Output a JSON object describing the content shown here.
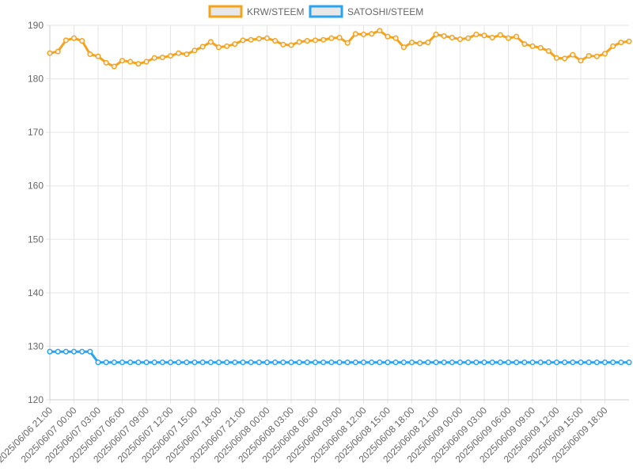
{
  "chart_data": {
    "type": "line",
    "title": "",
    "xlabel": "",
    "ylabel": "",
    "ylim": [
      120,
      190
    ],
    "yticks": [
      120,
      130,
      140,
      150,
      160,
      170,
      180,
      190
    ],
    "grid": true,
    "legend_position": "top-center",
    "x": [
      "2025/06/06 21:00",
      "2025/06/06 22:00",
      "2025/06/06 23:00",
      "2025/06/07 00:00",
      "2025/06/07 01:00",
      "2025/06/07 02:00",
      "2025/06/07 03:00",
      "2025/06/07 04:00",
      "2025/06/07 05:00",
      "2025/06/07 06:00",
      "2025/06/07 07:00",
      "2025/06/07 08:00",
      "2025/06/07 09:00",
      "2025/06/07 10:00",
      "2025/06/07 11:00",
      "2025/06/07 12:00",
      "2025/06/07 13:00",
      "2025/06/07 14:00",
      "2025/06/07 15:00",
      "2025/06/07 16:00",
      "2025/06/07 17:00",
      "2025/06/07 18:00",
      "2025/06/07 19:00",
      "2025/06/07 20:00",
      "2025/06/07 21:00",
      "2025/06/07 22:00",
      "2025/06/07 23:00",
      "2025/06/08 00:00",
      "2025/06/08 01:00",
      "2025/06/08 02:00",
      "2025/06/08 03:00",
      "2025/06/08 04:00",
      "2025/06/08 05:00",
      "2025/06/08 06:00",
      "2025/06/08 07:00",
      "2025/06/08 08:00",
      "2025/06/08 09:00",
      "2025/06/08 10:00",
      "2025/06/08 11:00",
      "2025/06/08 12:00",
      "2025/06/08 13:00",
      "2025/06/08 14:00",
      "2025/06/08 15:00",
      "2025/06/08 16:00",
      "2025/06/08 17:00",
      "2025/06/08 18:00",
      "2025/06/08 19:00",
      "2025/06/08 20:00",
      "2025/06/08 21:00",
      "2025/06/08 22:00",
      "2025/06/08 23:00",
      "2025/06/09 00:00",
      "2025/06/09 01:00",
      "2025/06/09 02:00",
      "2025/06/09 03:00",
      "2025/06/09 04:00",
      "2025/06/09 05:00",
      "2025/06/09 06:00",
      "2025/06/09 07:00",
      "2025/06/09 08:00",
      "2025/06/09 09:00",
      "2025/06/09 10:00",
      "2025/06/09 11:00",
      "2025/06/09 12:00",
      "2025/06/09 13:00",
      "2025/06/09 14:00",
      "2025/06/09 15:00",
      "2025/06/09 16:00",
      "2025/06/09 17:00",
      "2025/06/09 18:00",
      "2025/06/09 19:00",
      "2025/06/09 20:00",
      "2025/06/09 21:00"
    ],
    "x_tick_labels": [
      "2025/06/06 21:00",
      "2025/06/07 00:00",
      "2025/06/07 03:00",
      "2025/06/07 06:00",
      "2025/06/07 09:00",
      "2025/06/07 12:00",
      "2025/06/07 15:00",
      "2025/06/07 18:00",
      "2025/06/07 21:00",
      "2025/06/08 00:00",
      "2025/06/08 03:00",
      "2025/06/08 06:00",
      "2025/06/08 09:00",
      "2025/06/08 12:00",
      "2025/06/08 15:00",
      "2025/06/08 18:00",
      "2025/06/08 21:00",
      "2025/06/09 00:00",
      "2025/06/09 03:00",
      "2025/06/09 06:00",
      "2025/06/09 09:00",
      "2025/06/09 12:00",
      "2025/06/09 15:00",
      "2025/06/09 18:00"
    ],
    "series": [
      {
        "name": "KRW/STEEM",
        "color": "#f5a31a",
        "values": [
          184.8,
          185.1,
          187.2,
          187.6,
          187.1,
          184.6,
          184.2,
          183.0,
          182.3,
          183.4,
          183.2,
          182.8,
          183.2,
          183.9,
          184.0,
          184.3,
          184.8,
          184.6,
          185.3,
          186.0,
          186.9,
          185.9,
          186.1,
          186.5,
          187.2,
          187.3,
          187.5,
          187.6,
          187.1,
          186.4,
          186.3,
          186.9,
          187.1,
          187.2,
          187.3,
          187.6,
          187.7,
          186.7,
          188.4,
          188.3,
          188.4,
          189.0,
          187.9,
          187.6,
          185.9,
          186.8,
          186.6,
          186.8,
          188.3,
          188.0,
          187.7,
          187.4,
          187.6,
          188.3,
          188.1,
          187.7,
          188.2,
          187.6,
          187.9,
          186.5,
          186.1,
          185.8,
          185.2,
          183.9,
          183.8,
          184.5,
          183.4,
          184.3,
          184.2,
          184.7,
          186.1,
          186.8,
          187.0
        ]
      },
      {
        "name": "SATOSHI/STEEM",
        "color": "#2aa3f0",
        "values": [
          129,
          129,
          129,
          129,
          129,
          129,
          127,
          127,
          127,
          127,
          127,
          127,
          127,
          127,
          127,
          127,
          127,
          127,
          127,
          127,
          127,
          127,
          127,
          127,
          127,
          127,
          127,
          127,
          127,
          127,
          127,
          127,
          127,
          127,
          127,
          127,
          127,
          127,
          127,
          127,
          127,
          127,
          127,
          127,
          127,
          127,
          127,
          127,
          127,
          127,
          127,
          127,
          127,
          127,
          127,
          127,
          127,
          127,
          127,
          127,
          127,
          127,
          127,
          127,
          127,
          127,
          127,
          127,
          127,
          127,
          127,
          127,
          127
        ]
      }
    ]
  }
}
